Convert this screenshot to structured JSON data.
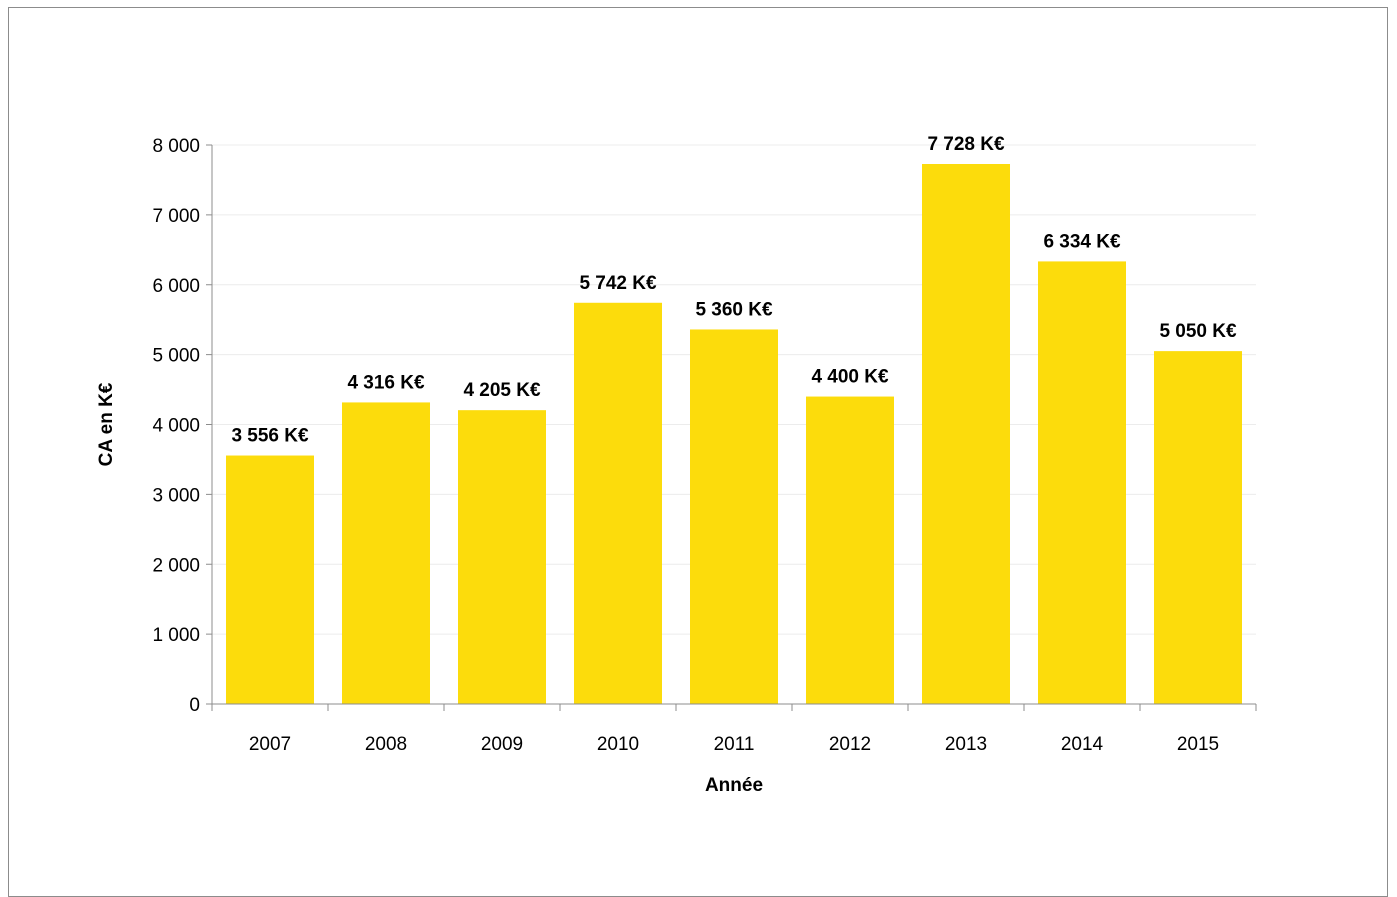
{
  "chart_data": {
    "type": "bar",
    "title": "",
    "xlabel": "Année",
    "ylabel": "CA en K€",
    "categories": [
      "2007",
      "2008",
      "2009",
      "2010",
      "2011",
      "2012",
      "2013",
      "2014",
      "2015"
    ],
    "values": [
      3556,
      4316,
      4205,
      5742,
      5360,
      4400,
      7728,
      6334,
      5050
    ],
    "data_labels": [
      "3 556 K€",
      "4 316 K€",
      "4 205 K€",
      "5 742 K€",
      "5 360 K€",
      "4 400 K€",
      "7 728 K€",
      "6 334 K€",
      "5 050 K€"
    ],
    "yticks": [
      0,
      1000,
      2000,
      3000,
      4000,
      5000,
      6000,
      7000,
      8000
    ],
    "ytick_labels": [
      "0",
      "1 000",
      "2 000",
      "3 000",
      "4 000",
      "5 000",
      "6 000",
      "7 000",
      "8 000"
    ],
    "ylim": [
      0,
      8000
    ],
    "grid": true,
    "legend": "none",
    "colors": {
      "bar": "#FCDC0C",
      "grid": "#ececec",
      "axis": "#8c8c8c"
    }
  }
}
